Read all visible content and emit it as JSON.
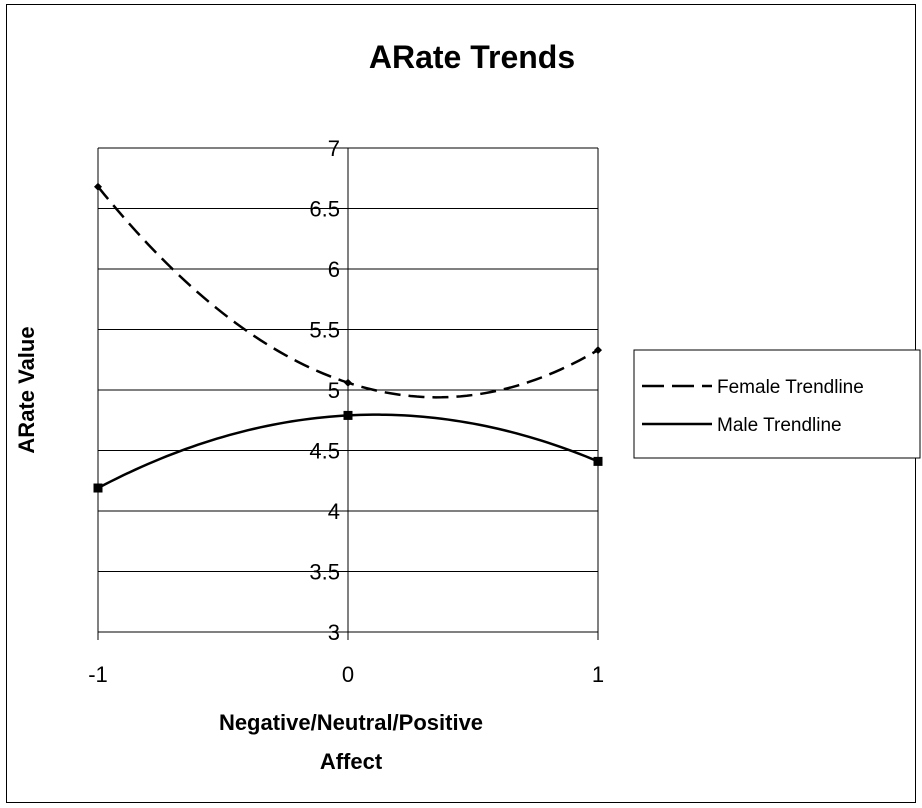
{
  "chart_data": {
    "type": "line",
    "title": "ARate Trends",
    "xlabel_line1": "Negative/Neutral/Positive",
    "xlabel_line2": "Affect",
    "ylabel": "ARate Value",
    "xlim": [
      -1,
      1
    ],
    "ylim": [
      3,
      7
    ],
    "x_ticks": [
      "-1",
      "0",
      "1"
    ],
    "y_ticks": [
      "3",
      "3.5",
      "4",
      "4.5",
      "5",
      "5.5",
      "6",
      "6.5",
      "7"
    ],
    "grid": "horizontal",
    "legend_position": "right",
    "series": [
      {
        "name": "Female Trendline",
        "style": "dashed",
        "color": "#000000",
        "x": [
          -1,
          0,
          1
        ],
        "y": [
          6.68,
          5.06,
          5.33
        ]
      },
      {
        "name": "Male Trendline",
        "style": "solid",
        "color": "#000000",
        "x": [
          -1,
          0,
          1
        ],
        "y": [
          4.19,
          4.79,
          4.41
        ]
      }
    ]
  }
}
